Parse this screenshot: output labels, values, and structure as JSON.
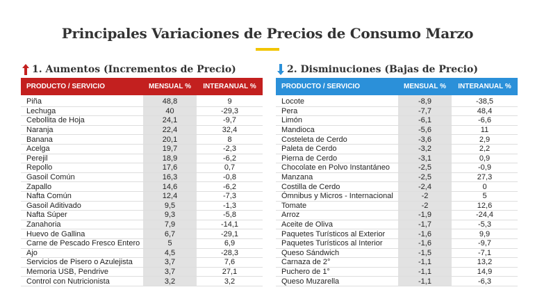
{
  "title": "Principales Variaciones de Precios de Consumo Marzo",
  "accent_colors": {
    "underline": "#f2c500",
    "increases": "#c3201f",
    "decreases": "#2b90d9"
  },
  "increases": {
    "heading": "1. Aumentos (Incrementos de Precio)",
    "icon": "arrow-up-icon",
    "columns": [
      "PRODUCTO / SERVICIO",
      "MENSUAL %",
      "INTERANUAL %"
    ],
    "rows": [
      [
        "Piña",
        "48,8",
        "9"
      ],
      [
        "Lechuga",
        "40",
        "-29,3"
      ],
      [
        "Cebollita de Hoja",
        "24,1",
        "-9,7"
      ],
      [
        "Naranja",
        "22,4",
        "32,4"
      ],
      [
        "Banana",
        "20,1",
        "8"
      ],
      [
        "Acelga",
        "19,7",
        "-2,3"
      ],
      [
        "Perejil",
        "18,9",
        "-6,2"
      ],
      [
        "Repollo",
        "17,6",
        "0,7"
      ],
      [
        "Gasoil Común",
        "16,3",
        "-0,8"
      ],
      [
        "Zapallo",
        "14,6",
        "-6,2"
      ],
      [
        "Nafta Común",
        "12,4",
        "-7,3"
      ],
      [
        "Gasoil Aditivado",
        "9,5",
        "-1,3"
      ],
      [
        "Nafta Súper",
        "9,3",
        "-5,8"
      ],
      [
        "Zanahoria",
        "7,9",
        "-14,1"
      ],
      [
        "Huevo de Gallina",
        "6,7",
        "-29,1"
      ],
      [
        "Carne de Pescado Fresco Entero",
        "5",
        "6,9"
      ],
      [
        "Ajo",
        "4,5",
        "-28,3"
      ],
      [
        "Servicios de Pisero o Azulejista",
        "3,7",
        "7,6"
      ],
      [
        "Memoria USB, Pendrive",
        "3,7",
        "27,1"
      ],
      [
        "Control con Nutricionista",
        "3,2",
        "3,2"
      ]
    ]
  },
  "decreases": {
    "heading": "2. Disminuciones (Bajas de Precio)",
    "icon": "arrow-down-icon",
    "columns": [
      "PRODUCTO / SERVICIO",
      "MENSUAL %",
      "INTERANUAL %"
    ],
    "rows": [
      [
        "Locote",
        "-8,9",
        "-38,5"
      ],
      [
        "Pera",
        "-7,7",
        "48,4"
      ],
      [
        "Limón",
        "-6,1",
        "-6,6"
      ],
      [
        "Mandioca",
        "-5,6",
        "11"
      ],
      [
        "Costeleta de Cerdo",
        "-3,6",
        "2,9"
      ],
      [
        "Paleta de Cerdo",
        "-3,2",
        "2,2"
      ],
      [
        "Pierna de Cerdo",
        "-3,1",
        "0,9"
      ],
      [
        "Chocolate en Polvo Instantáneo",
        "-2,5",
        "-0,9"
      ],
      [
        "Manzana",
        "-2,5",
        "27,3"
      ],
      [
        "Costilla de Cerdo",
        "-2,4",
        "0"
      ],
      [
        "Ómnibus y Micros - Internacional",
        "-2",
        "5"
      ],
      [
        "Tomate",
        "-2",
        "12,6"
      ],
      [
        "Arroz",
        "-1,9",
        "-24,4"
      ],
      [
        "Aceite de Oliva",
        "-1,7",
        "-5,3"
      ],
      [
        "Paquetes Turísticos al Exterior",
        "-1,6",
        "9,9"
      ],
      [
        "Paquetes Turísticos al Interior",
        "-1,6",
        "-9,7"
      ],
      [
        "Queso Sándwich",
        "-1,5",
        "-7,1"
      ],
      [
        "Carnaza de 2°",
        "-1,1",
        "13,2"
      ],
      [
        "Puchero de 1°",
        "-1,1",
        "14,9"
      ],
      [
        "Queso Muzarella",
        "-1,1",
        "-6,3"
      ]
    ]
  }
}
